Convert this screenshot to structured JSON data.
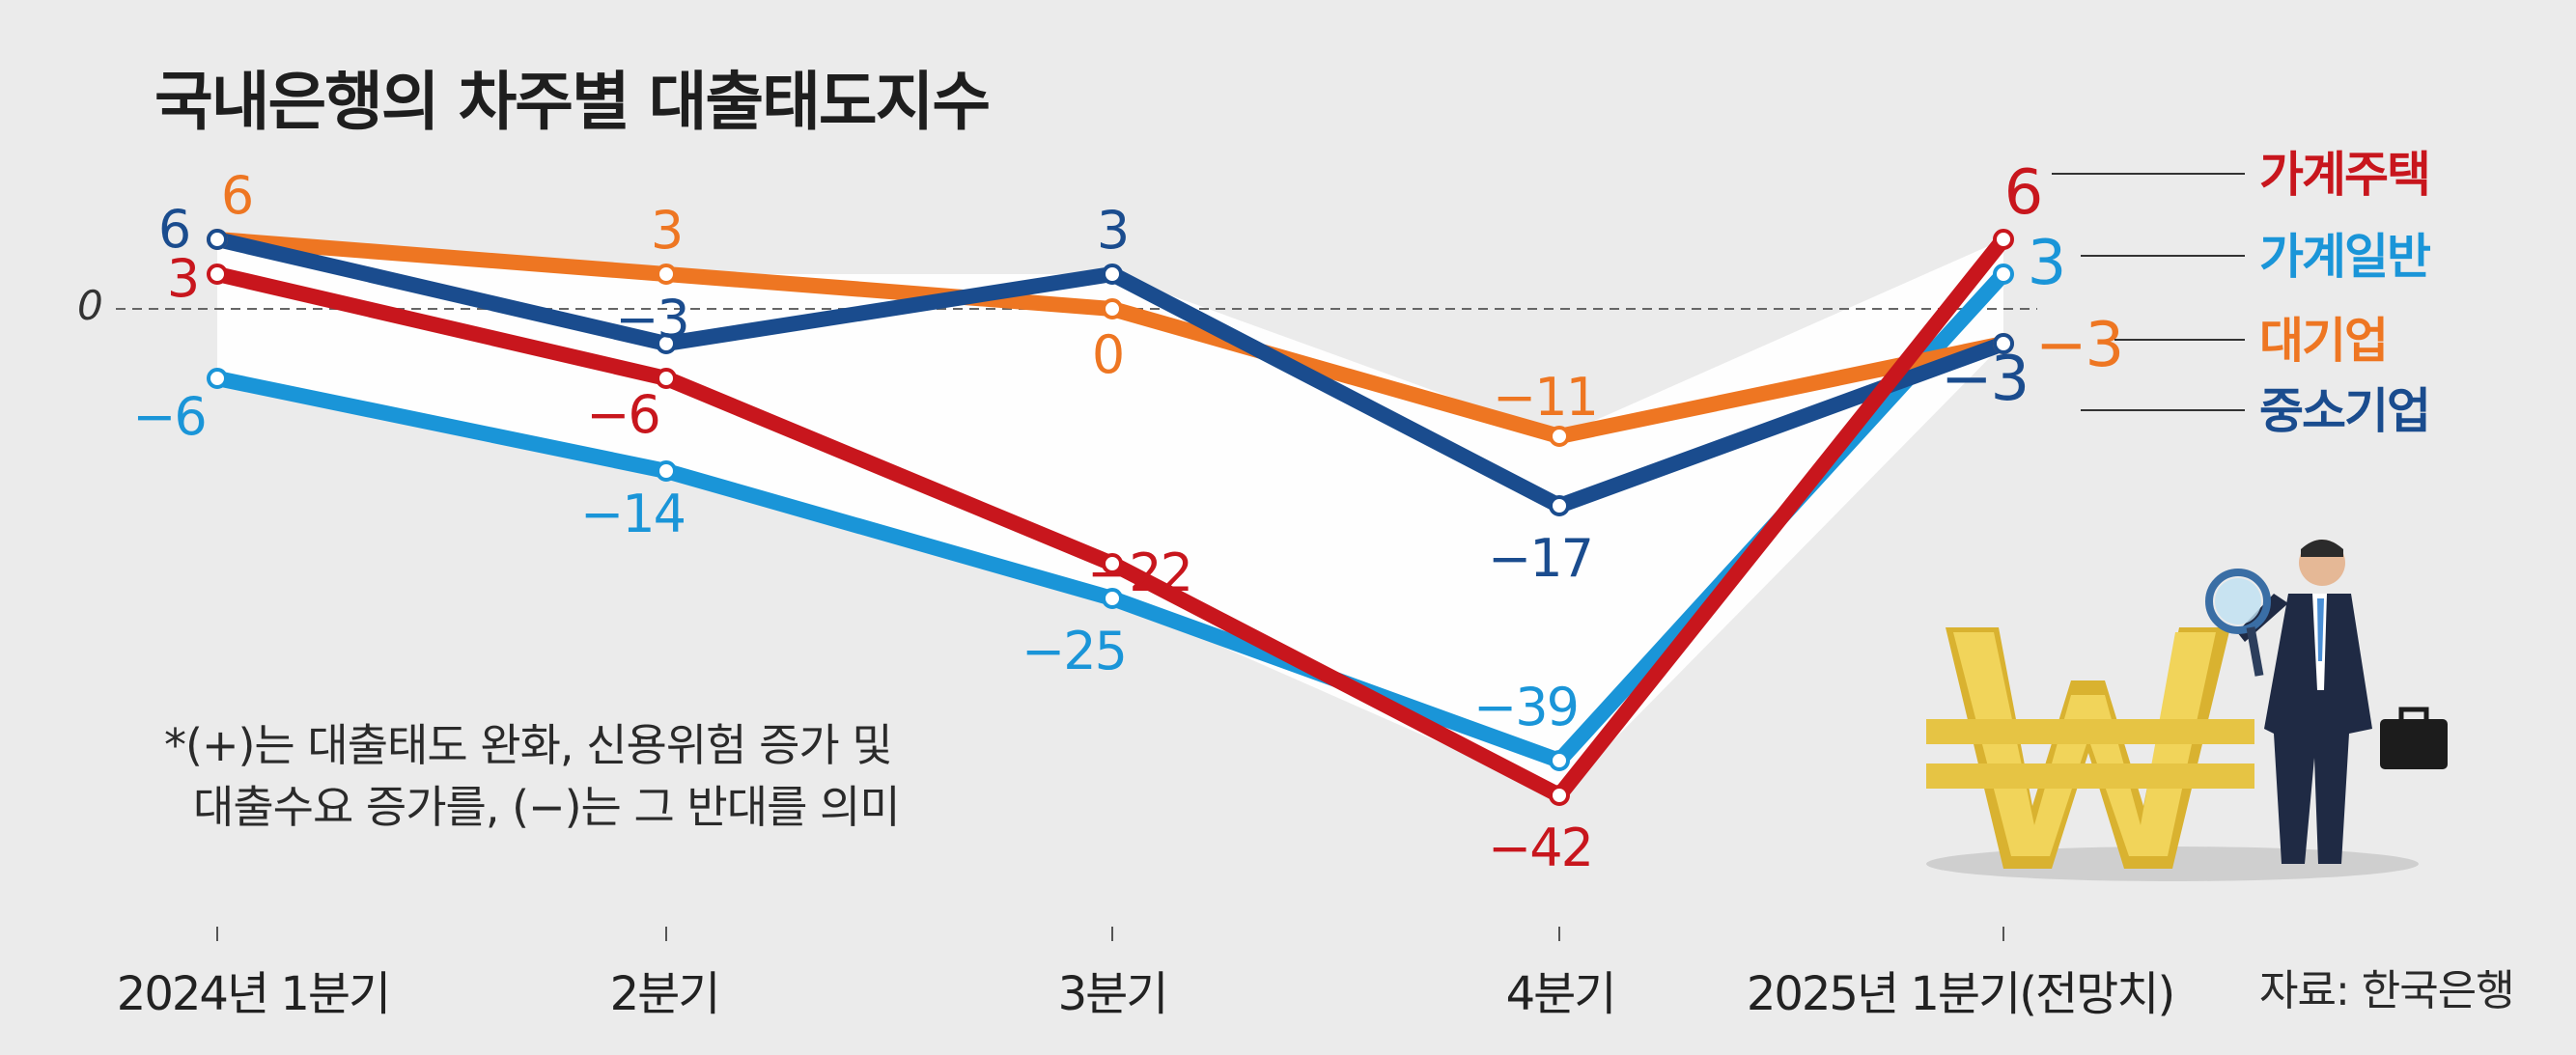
{
  "title": "국내은행의 차주별 대출태도지수",
  "note": {
    "line1": "*(+)는 대출태도 완화, 신용위험 증가 및",
    "line2": "대출수요 증가를, (−)는 그 반대를 의미"
  },
  "source": "자료: 한국은행",
  "chart_data": {
    "type": "line",
    "title": "국내은행의 차주별 대출태도지수",
    "categories": [
      "2024년 1분기",
      "2분기",
      "3분기",
      "4분기",
      "2025년 1분기(전망치)"
    ],
    "zero_label": "0",
    "ylim": [
      -45,
      10
    ],
    "grid": false,
    "series": [
      {
        "name": "가계주택",
        "color": "#c8161d",
        "values": [
          3,
          -6,
          -22,
          -42,
          6
        ],
        "labels": [
          "3",
          "−6",
          "−22",
          "−42",
          "6"
        ]
      },
      {
        "name": "가계일반",
        "color": "#1a95d8",
        "values": [
          -6,
          -14,
          -25,
          -39,
          3
        ],
        "labels": [
          "−6",
          "−14",
          "−25",
          "−39",
          "3"
        ]
      },
      {
        "name": "대기업",
        "color": "#ee7622",
        "values": [
          6,
          3,
          0,
          -11,
          -3
        ],
        "labels": [
          "6",
          "3",
          "0",
          "−11",
          "−3"
        ]
      },
      {
        "name": "중소기업",
        "color": "#1a4c8e",
        "values": [
          6,
          -3,
          3,
          -17,
          -3
        ],
        "labels": [
          "6",
          "−3",
          "3",
          "−17",
          "−3"
        ]
      }
    ],
    "legend_position": "right"
  }
}
